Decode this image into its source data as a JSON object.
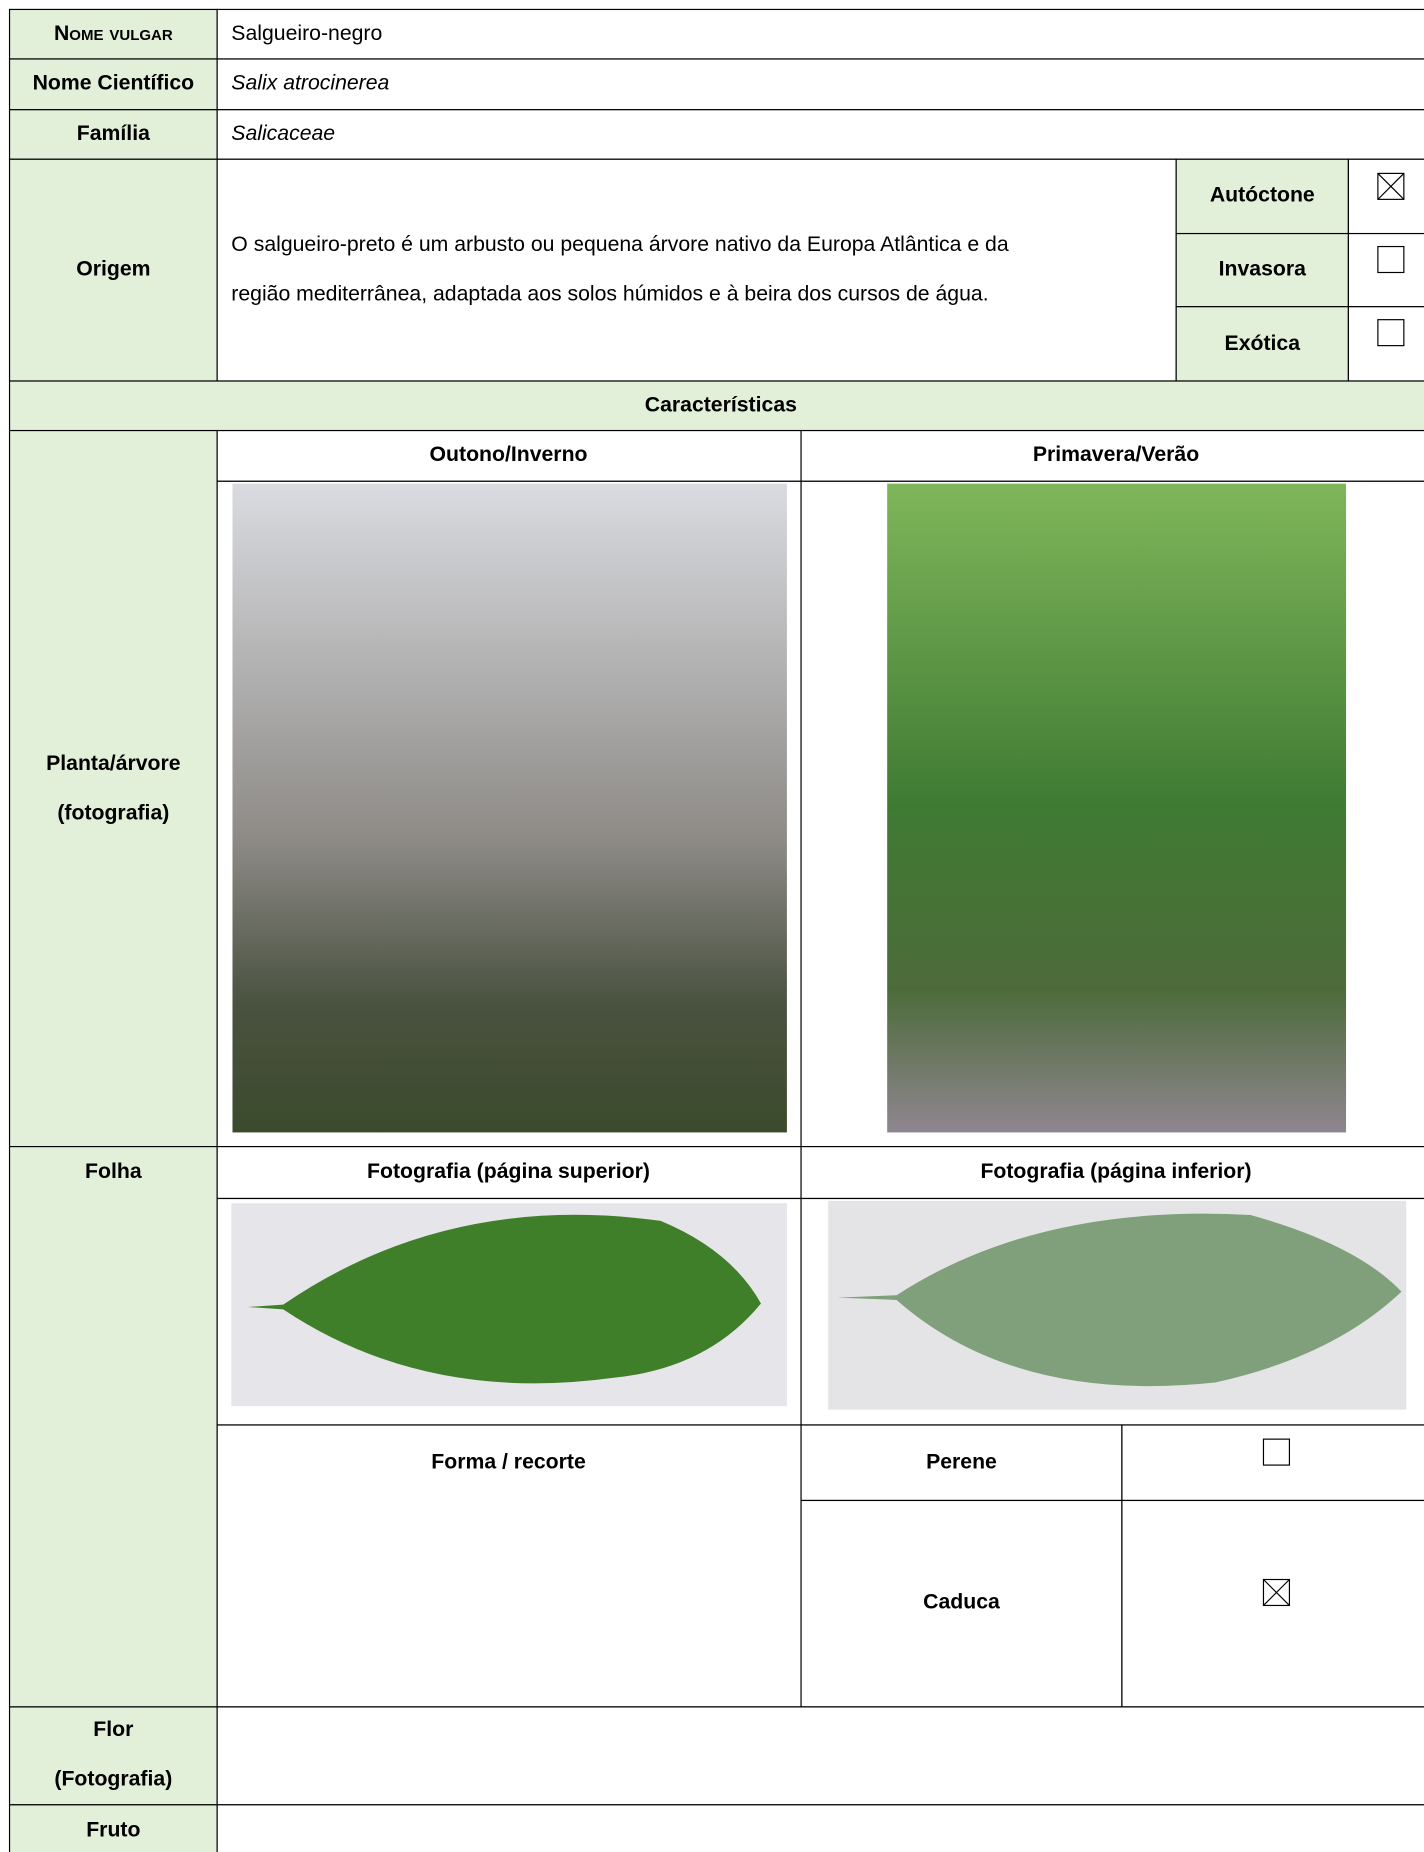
{
  "form": {
    "common_name": {
      "label": "Nome vulgar",
      "value": "Salgueiro-negro"
    },
    "scientific_name": {
      "label": "Nome Científico",
      "value": "Salix atrocinerea"
    },
    "family": {
      "label": "Família",
      "value": "Salicaceae"
    },
    "origin": {
      "label": "Origem",
      "description": [
        "O salgueiro-preto é um arbusto ou pequena árvore nativo da Europa Atlântica e da",
        "região mediterrânea, adaptada aos solos húmidos e à beira dos cursos de água."
      ],
      "options": [
        {
          "label": "Autóctone",
          "checked": true
        },
        {
          "label": "Invasora",
          "checked": false
        },
        {
          "label": "Exótica",
          "checked": false
        }
      ]
    },
    "characteristics": "Características",
    "plant": {
      "label": [
        "Planta/árvore",
        "(fotografia)"
      ],
      "seasons": [
        "Outono/Inverno",
        "Primavera/Verão"
      ]
    },
    "leaf": {
      "label": "Folha",
      "photos": [
        "Fotografia (página superior)",
        "Fotografia (página inferior)"
      ],
      "shape": "Forma / recorte",
      "persistence": [
        {
          "label": "Perene",
          "checked": false
        },
        {
          "label": "Caduca",
          "checked": true
        }
      ]
    },
    "flower": {
      "label": [
        "Flor",
        "(Fotografia)"
      ]
    },
    "fruit": {
      "label": "Fruto"
    }
  }
}
